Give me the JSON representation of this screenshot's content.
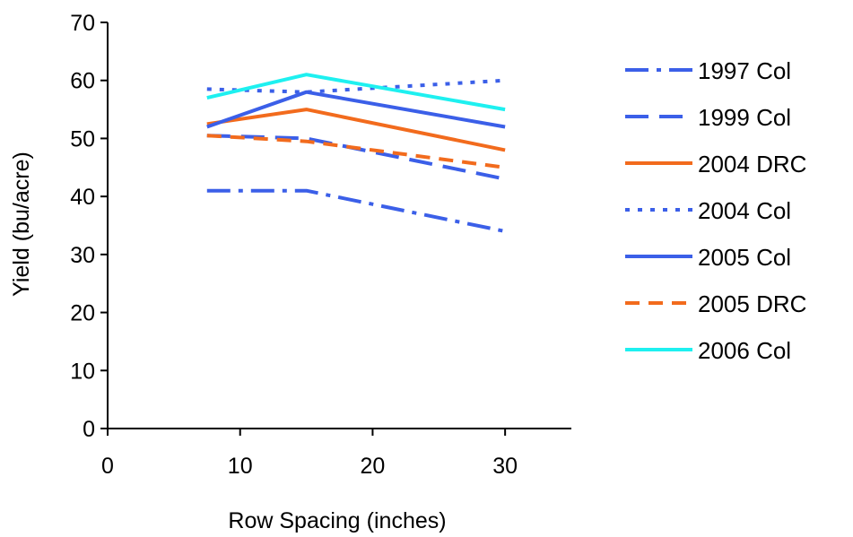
{
  "chart_data": {
    "type": "line",
    "title": "",
    "xlabel": "Row Spacing (inches)",
    "ylabel": "Yield (bu/acre)",
    "xlim": [
      0,
      35
    ],
    "ylim": [
      0,
      70
    ],
    "x_ticks": [
      0,
      10,
      20,
      30
    ],
    "y_ticks": [
      0,
      10,
      20,
      30,
      40,
      50,
      60,
      70
    ],
    "grid": false,
    "legend_position": "right",
    "series": [
      {
        "name": "1997 Col",
        "x": [
          7.5,
          15,
          30
        ],
        "values": [
          41,
          41,
          34
        ],
        "color": "#3B5FE8",
        "dash": "dashdot"
      },
      {
        "name": "1999 Col",
        "x": [
          7.5,
          15,
          30
        ],
        "values": [
          50.5,
          50,
          43
        ],
        "color": "#3B5FE8",
        "dash": "longdash"
      },
      {
        "name": "2004 DRC",
        "x": [
          7.5,
          15,
          30
        ],
        "values": [
          52.5,
          55,
          48
        ],
        "color": "#F26B1D",
        "dash": "solid"
      },
      {
        "name": "2004 Col",
        "x": [
          7.5,
          15,
          30
        ],
        "values": [
          58.5,
          58,
          60
        ],
        "color": "#3B5FE8",
        "dash": "dotted"
      },
      {
        "name": "2005 Col",
        "x": [
          7.5,
          15,
          30
        ],
        "values": [
          52,
          58,
          52
        ],
        "color": "#3B5FE8",
        "dash": "solid"
      },
      {
        "name": "2005 DRC",
        "x": [
          7.5,
          15,
          30
        ],
        "values": [
          50.5,
          49.5,
          45
        ],
        "color": "#F26B1D",
        "dash": "dashed"
      },
      {
        "name": "2006 Col",
        "x": [
          7.5,
          15,
          30
        ],
        "values": [
          57,
          61,
          55
        ],
        "color": "#1EF0F0",
        "dash": "solid"
      }
    ]
  }
}
